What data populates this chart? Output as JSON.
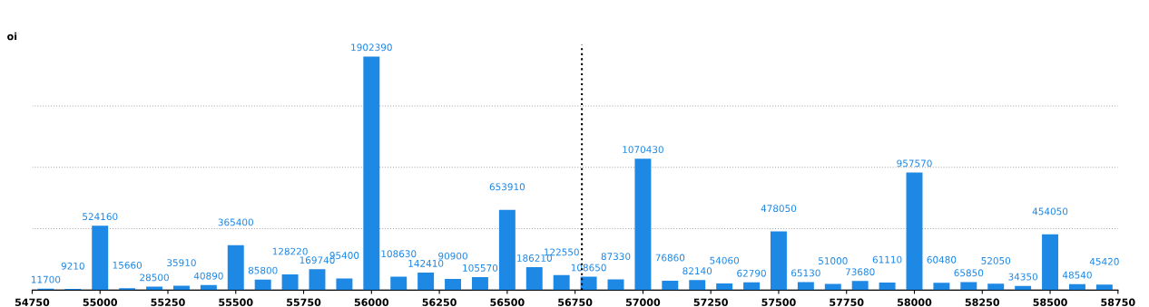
{
  "chart_data": {
    "type": "bar",
    "ylabel": "oi",
    "x": [
      54800,
      54900,
      55000,
      55100,
      55200,
      55300,
      55400,
      55500,
      55600,
      55700,
      55800,
      55900,
      56000,
      56100,
      56200,
      56300,
      56400,
      56500,
      56600,
      56700,
      56800,
      56900,
      57000,
      57100,
      57200,
      57300,
      57400,
      57500,
      57600,
      57700,
      57800,
      57900,
      58000,
      58100,
      58200,
      58300,
      58400,
      58500,
      58600,
      58700
    ],
    "values": [
      11700,
      9210,
      524160,
      15660,
      28500,
      35910,
      40890,
      365400,
      85800,
      128220,
      169740,
      95400,
      1902390,
      108630,
      142410,
      90900,
      105570,
      653910,
      186210,
      122550,
      108650,
      87330,
      1070430,
      76860,
      82140,
      54060,
      62790,
      478050,
      65130,
      51000,
      73680,
      61110,
      957570,
      60480,
      65850,
      52050,
      34350,
      454050,
      48540,
      45420
    ],
    "color": "#1e88e5",
    "data_labels": true,
    "xlim": [
      54750,
      58750
    ],
    "xticks": [
      54750,
      55000,
      55250,
      55500,
      55750,
      56000,
      56250,
      56500,
      56750,
      57000,
      57250,
      57500,
      57750,
      58000,
      58250,
      58500,
      58750
    ],
    "ylim": [
      0,
      2000000
    ],
    "yticks": [
      {
        "value": 0,
        "label": null
      },
      {
        "value": 500000,
        "label": null
      },
      {
        "value": 1000000,
        "label": null
      },
      {
        "value": 1500000,
        "label": null
      }
    ],
    "tick_labels": "x",
    "grid": "y",
    "ref_lines": [
      {
        "axis": "x",
        "value": 56775,
        "color": "#000000",
        "line_style": "dotted"
      }
    ]
  }
}
